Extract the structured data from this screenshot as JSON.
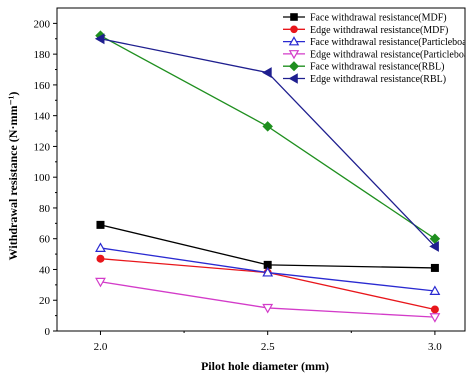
{
  "chart_data": {
    "type": "line",
    "title": "",
    "xlabel": "Pilot hole diameter (mm)",
    "ylabel": "Withdrawal resistance (N·mm⁻¹)",
    "x": [
      2.0,
      2.5,
      3.0
    ],
    "x_tick_labels": [
      "2.0",
      "2.5",
      "3.0"
    ],
    "xlim": [
      1.87,
      3.09
    ],
    "ylim": [
      0,
      210
    ],
    "y_ticks": [
      0,
      20,
      40,
      60,
      80,
      100,
      120,
      140,
      160,
      180,
      200
    ],
    "grid": false,
    "legend_position": "top-right",
    "series": [
      {
        "name": "Face withdrawal resistance(MDF)",
        "values": [
          69,
          43,
          41
        ],
        "color": "#000000",
        "marker": "square-filled"
      },
      {
        "name": "Edge withdrawal resistance(MDF)",
        "values": [
          47,
          38,
          14
        ],
        "color": "#e8161b",
        "marker": "circle-filled"
      },
      {
        "name": "Face withdrawal resistance(Particleboard)",
        "values": [
          54,
          38,
          26
        ],
        "color": "#2a2ad1",
        "marker": "triangle-up-open"
      },
      {
        "name": "Edge withdrawal resistance(Particleboard)",
        "values": [
          32,
          15,
          9
        ],
        "color": "#d33cc9",
        "marker": "triangle-down-open"
      },
      {
        "name": "Face withdrawal resistance(RBL)",
        "values": [
          192,
          133,
          60
        ],
        "color": "#1f8f1f",
        "marker": "diamond-filled"
      },
      {
        "name": "Edge withdrawal resistance(RBL)",
        "values": [
          190,
          168,
          55
        ],
        "color": "#1f1f8f",
        "marker": "triangle-left-filled"
      }
    ]
  }
}
